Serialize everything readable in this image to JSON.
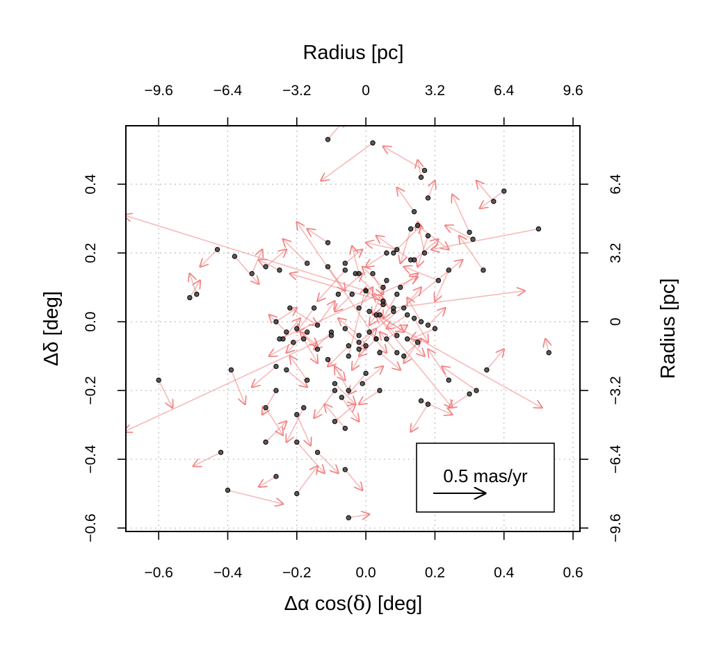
{
  "chart_data": {
    "type": "scatter",
    "xlabel_pre": "Δα cos(",
    "xlabel_sym": "δ",
    "xlabel_post": ") [deg]",
    "ylabel": "Δδ [deg]",
    "top_label": "Radius [pc]",
    "right_label": "Radius [pc]",
    "xlim": [
      -0.695,
      0.62
    ],
    "ylim": [
      -0.61,
      0.57
    ],
    "x_ticks": [
      "−0.6",
      "−0.4",
      "−0.2",
      "0.0",
      "0.2",
      "0.4",
      "0.6"
    ],
    "x_tick_values": [
      -0.6,
      -0.4,
      -0.2,
      0.0,
      0.2,
      0.4,
      0.6
    ],
    "y_ticks": [
      "−0.6",
      "−0.4",
      "−0.2",
      "0.0",
      "0.2",
      "0.4"
    ],
    "y_tick_values": [
      -0.6,
      -0.4,
      -0.2,
      0.0,
      0.2,
      0.4
    ],
    "top_ticks": [
      "−9.6",
      "−6.4",
      "−3.2",
      "0",
      "3.2",
      "6.4",
      "9.6"
    ],
    "right_ticks": [
      "−9.6",
      "−6.4",
      "−3.2",
      "0",
      "3.2",
      "6.4"
    ],
    "grid": true,
    "legend": {
      "label": "0.5 mas/yr",
      "arrow_length_deg": 0.3,
      "placement": "bottom-right"
    },
    "colors": {
      "arrow": "#f08080",
      "point": "#333333",
      "axis": "#000000",
      "grid": "#bbbbbb"
    },
    "stars": [
      [
        -0.11,
        0.53,
        0.05,
        0.06
      ],
      [
        0.02,
        0.52,
        -0.15,
        -0.11
      ],
      [
        0.16,
        0.42,
        -0.01,
        0.05
      ],
      [
        0.17,
        0.44,
        -0.12,
        0.07
      ],
      [
        0.4,
        0.38,
        -0.07,
        -0.05
      ],
      [
        0.37,
        0.35,
        -0.05,
        0.06
      ],
      [
        0.18,
        0.36,
        0.02,
        0.05
      ],
      [
        0.14,
        0.32,
        -0.05,
        0.07
      ],
      [
        0.15,
        0.28,
        0.09,
        -0.07
      ],
      [
        0.13,
        0.27,
        -0.03,
        -0.1
      ],
      [
        0.5,
        0.27,
        -0.31,
        -0.06
      ],
      [
        0.3,
        0.26,
        -0.05,
        0.11
      ],
      [
        0.31,
        0.24,
        -0.08,
        0.04
      ],
      [
        0.18,
        0.25,
        -0.03,
        -0.09
      ],
      [
        -0.43,
        0.21,
        -0.05,
        -0.05
      ],
      [
        -0.11,
        0.23,
        -0.06,
        0.04
      ],
      [
        -0.38,
        0.19,
        0.07,
        -0.08
      ],
      [
        0.09,
        0.21,
        -0.09,
        0.02
      ],
      [
        0.08,
        0.2,
        0.08,
        0.08
      ],
      [
        0.17,
        0.2,
        -0.02,
        0.09
      ],
      [
        0.06,
        0.2,
        -0.06,
        -0.04
      ],
      [
        0.14,
        0.18,
        0.07,
        0.06
      ],
      [
        0.13,
        0.18,
        -0.1,
        0.07
      ],
      [
        -0.29,
        0.16,
        0.06,
        0.05
      ],
      [
        -0.17,
        0.17,
        -0.07,
        0.07
      ],
      [
        -0.11,
        0.16,
        0.05,
        -0.07
      ],
      [
        -0.06,
        0.17,
        0.05,
        0.04
      ],
      [
        -0.06,
        0.15,
        -0.08,
        -0.09
      ],
      [
        -0.25,
        0.15,
        -0.06,
        0.03
      ],
      [
        -0.33,
        0.14,
        0.03,
        0.07
      ],
      [
        -0.03,
        0.14,
        0.08,
        -0.08
      ],
      [
        -0.02,
        0.14,
        -0.02,
        0.08
      ],
      [
        0.02,
        0.14,
        0.03,
        -0.06
      ],
      [
        0.06,
        0.12,
        -0.04,
        -0.1
      ],
      [
        0.21,
        0.12,
        -0.1,
        0.04
      ],
      [
        0.34,
        0.15,
        -0.07,
        0.1
      ],
      [
        0.24,
        0.15,
        -0.04,
        -0.09
      ],
      [
        -0.51,
        0.07,
        0.03,
        0.05
      ],
      [
        -0.49,
        0.08,
        -0.02,
        0.06
      ],
      [
        0.1,
        0.1,
        0.05,
        0.04
      ],
      [
        0.09,
        0.08,
        -0.04,
        -0.07
      ],
      [
        0.05,
        0.1,
        -0.06,
        0.06
      ],
      [
        0.0,
        0.09,
        0.06,
        -0.04
      ],
      [
        -0.04,
        0.08,
        -0.05,
        -0.05
      ],
      [
        -0.08,
        0.08,
        0.07,
        0.06
      ],
      [
        -0.22,
        0.04,
        0.08,
        -0.05
      ],
      [
        -0.15,
        0.04,
        -0.05,
        -0.07
      ],
      [
        -0.02,
        0.04,
        0.04,
        0.06
      ],
      [
        0.05,
        0.05,
        -0.04,
        -0.06
      ],
      [
        0.04,
        0.02,
        0.07,
        -0.05
      ],
      [
        0.08,
        0.03,
        -0.06,
        0.05
      ],
      [
        0.11,
        0.04,
        0.05,
        0.06
      ],
      [
        0.12,
        0.02,
        -0.06,
        -0.04
      ],
      [
        0.14,
        0.01,
        0.04,
        -0.07
      ],
      [
        0.16,
        0.0,
        -0.04,
        0.07
      ],
      [
        0.18,
        -0.01,
        0.05,
        0.05
      ],
      [
        0.2,
        -0.02,
        -0.07,
        -0.03
      ],
      [
        -0.26,
        0.0,
        0.06,
        0.04
      ],
      [
        -0.23,
        -0.03,
        -0.05,
        0.05
      ],
      [
        -0.2,
        -0.02,
        0.06,
        -0.05
      ],
      [
        -0.17,
        -0.03,
        -0.06,
        -0.06
      ],
      [
        -0.14,
        -0.01,
        0.05,
        0.07
      ],
      [
        -0.1,
        -0.03,
        -0.05,
        -0.05
      ],
      [
        -0.06,
        -0.02,
        0.06,
        -0.06
      ],
      [
        -0.02,
        -0.04,
        -0.06,
        0.05
      ],
      [
        0.01,
        -0.03,
        0.05,
        -0.06
      ],
      [
        0.03,
        -0.05,
        -0.05,
        -0.05
      ],
      [
        0.06,
        -0.05,
        0.06,
        0.04
      ],
      [
        0.09,
        -0.04,
        -0.06,
        0.06
      ],
      [
        0.12,
        -0.05,
        0.05,
        -0.05
      ],
      [
        0.15,
        -0.06,
        -0.04,
        -0.06
      ],
      [
        -0.24,
        -0.05,
        0.05,
        0.06
      ],
      [
        -0.21,
        -0.06,
        -0.07,
        -0.04
      ],
      [
        -0.18,
        -0.05,
        0.04,
        -0.07
      ],
      [
        -0.14,
        -0.08,
        -0.05,
        0.05
      ],
      [
        -0.11,
        -0.11,
        0.05,
        -0.06
      ],
      [
        -0.05,
        -0.07,
        -0.06,
        -0.06
      ],
      [
        -0.02,
        -0.08,
        0.05,
        0.06
      ],
      [
        0.0,
        -0.07,
        -0.04,
        -0.07
      ],
      [
        0.04,
        -0.09,
        0.06,
        -0.05
      ],
      [
        0.09,
        -0.09,
        -0.05,
        0.06
      ],
      [
        0.11,
        -0.1,
        0.05,
        0.05
      ],
      [
        -0.26,
        -0.13,
        -0.07,
        -0.06
      ],
      [
        -0.23,
        -0.14,
        0.06,
        -0.05
      ],
      [
        -0.17,
        -0.17,
        -0.05,
        0.07
      ],
      [
        -0.09,
        -0.18,
        0.06,
        -0.06
      ],
      [
        -0.05,
        -0.2,
        -0.04,
        0.07
      ],
      [
        0.0,
        -0.15,
        -0.05,
        -0.06
      ],
      [
        -0.01,
        -0.18,
        0.06,
        0.05
      ],
      [
        0.04,
        -0.2,
        -0.06,
        -0.04
      ],
      [
        0.24,
        -0.17,
        -0.06,
        0.09
      ],
      [
        0.3,
        -0.21,
        -0.06,
        -0.04
      ],
      [
        0.32,
        -0.2,
        -0.1,
        0.07
      ],
      [
        0.35,
        -0.14,
        0.05,
        0.06
      ],
      [
        0.16,
        -0.23,
        0.09,
        -0.04
      ],
      [
        0.18,
        -0.24,
        -0.05,
        -0.08
      ],
      [
        -0.6,
        -0.17,
        0.04,
        -0.08
      ],
      [
        -0.39,
        -0.14,
        0.04,
        -0.1
      ],
      [
        -0.26,
        -0.2,
        -0.04,
        -0.07
      ],
      [
        -0.29,
        -0.25,
        0.05,
        -0.08
      ],
      [
        -0.18,
        -0.25,
        -0.05,
        -0.1
      ],
      [
        -0.2,
        -0.27,
        0.04,
        -0.09
      ],
      [
        -0.09,
        -0.2,
        -0.06,
        -0.08
      ],
      [
        -0.07,
        -0.22,
        0.05,
        -0.07
      ],
      [
        -0.09,
        -0.29,
        0.06,
        0.05
      ],
      [
        -0.06,
        -0.31,
        -0.06,
        0.07
      ],
      [
        -0.29,
        -0.35,
        0.06,
        0.06
      ],
      [
        -0.2,
        -0.35,
        0.08,
        -0.09
      ],
      [
        -0.14,
        -0.38,
        0.06,
        -0.06
      ],
      [
        -0.42,
        -0.38,
        -0.08,
        -0.04
      ],
      [
        -0.26,
        -0.45,
        -0.05,
        -0.03
      ],
      [
        -0.2,
        -0.5,
        0.06,
        0.08
      ],
      [
        -0.4,
        -0.49,
        0.16,
        -0.04
      ],
      [
        -0.06,
        -0.43,
        0.05,
        -0.06
      ],
      [
        -0.05,
        -0.57,
        0.06,
        0.01
      ],
      [
        0.53,
        -0.09,
        -0.01,
        0.04
      ],
      [
        0.03,
        -0.05,
        -0.23,
        0.34
      ],
      [
        0.01,
        0.03,
        0.5,
        -0.28
      ],
      [
        0.0,
        0.09,
        -0.7,
        0.22
      ],
      [
        -0.25,
        -0.05,
        0.4,
        0.18
      ],
      [
        -0.1,
        -0.04,
        -0.6,
        -0.28
      ],
      [
        0.08,
        0.04,
        0.38,
        0.05
      ],
      [
        -0.02,
        -0.06,
        0.3,
        0.24
      ],
      [
        0.03,
        0.02,
        0.22,
        -0.27
      ],
      [
        0.05,
        0.06,
        -0.27,
        0.08
      ],
      [
        -0.05,
        -0.1,
        0.05,
        0.2
      ]
    ]
  }
}
